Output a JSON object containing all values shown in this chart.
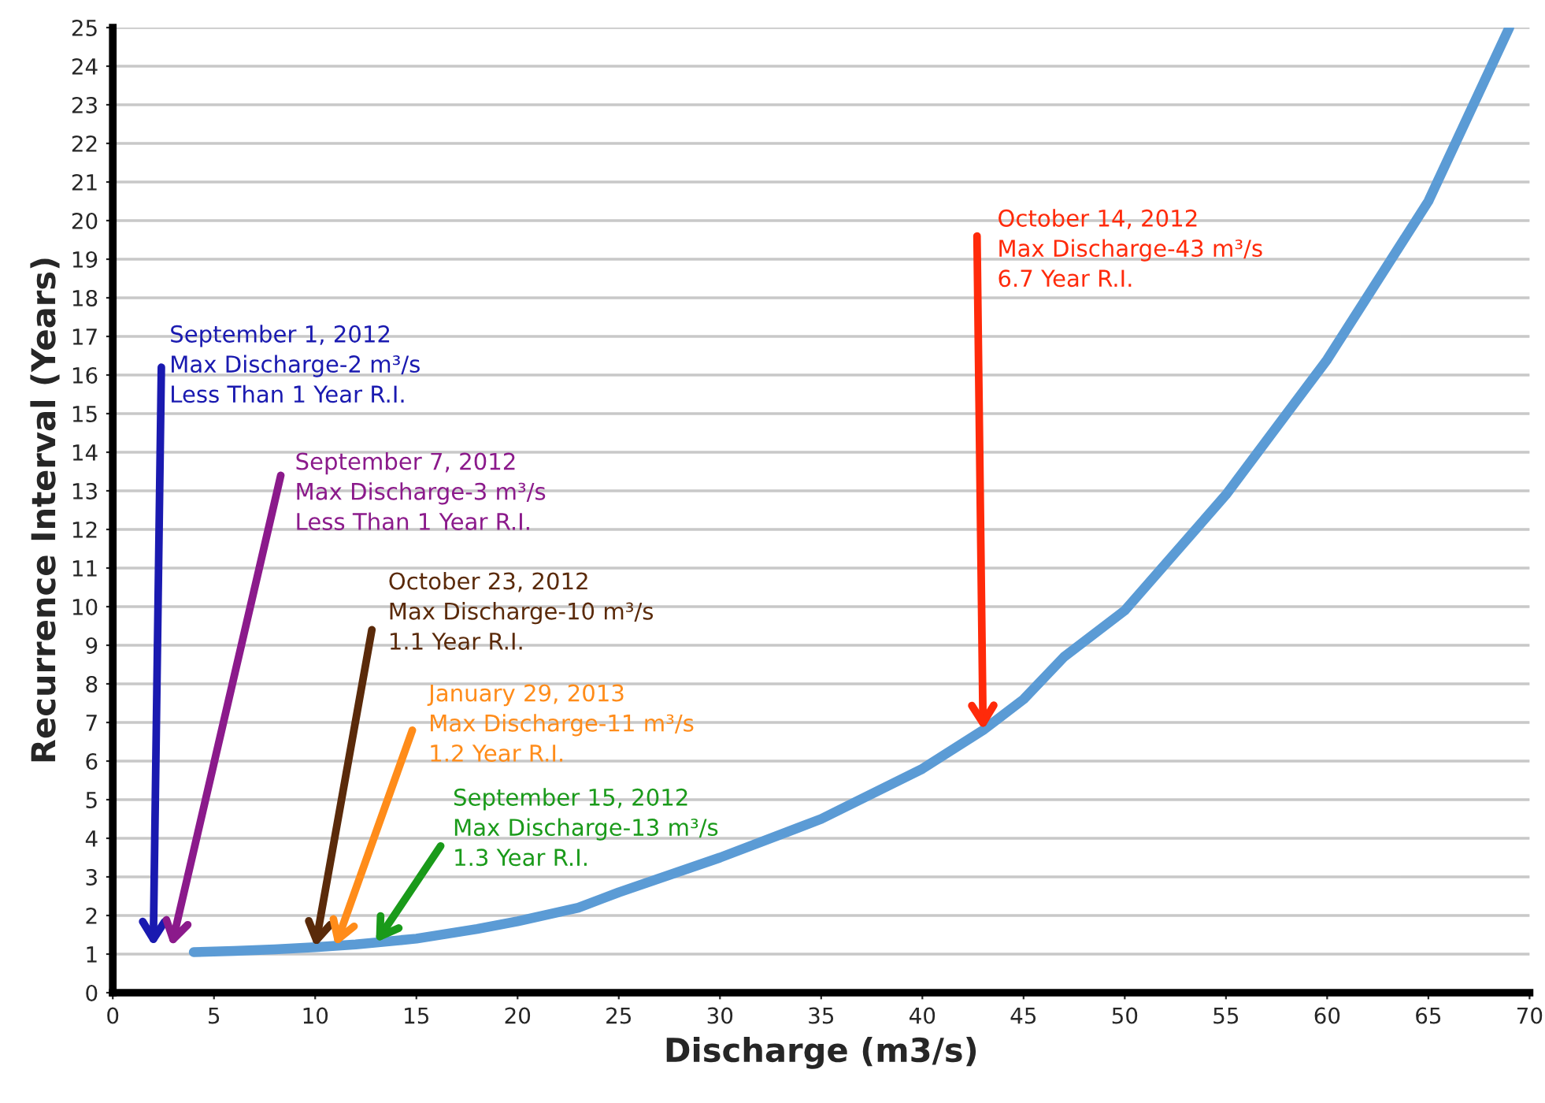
{
  "chart_data": {
    "type": "line",
    "xlabel": "Discharge (m3/s)",
    "ylabel": "Recurrence Interval (Years)",
    "series": [
      {
        "color": "#5b9bd5",
        "x": [
          4,
          6,
          8,
          10,
          12,
          15,
          18,
          20,
          23,
          25,
          30,
          35,
          40,
          43,
          45,
          47,
          50,
          55,
          60,
          65,
          69
        ],
        "values": [
          1.05,
          1.08,
          1.12,
          1.18,
          1.25,
          1.4,
          1.65,
          1.85,
          2.2,
          2.6,
          3.5,
          4.5,
          5.8,
          6.8,
          7.6,
          8.7,
          9.9,
          12.9,
          16.4,
          20.5,
          25
        ]
      }
    ],
    "xlim": [
      0,
      70
    ],
    "xticks": [
      0,
      5,
      10,
      15,
      20,
      25,
      30,
      35,
      40,
      45,
      50,
      55,
      60,
      65,
      70
    ],
    "ylim": [
      0,
      25
    ],
    "yticks": [
      0,
      1,
      2,
      3,
      4,
      5,
      6,
      7,
      8,
      9,
      10,
      11,
      12,
      13,
      14,
      15,
      16,
      17,
      18,
      19,
      20,
      21,
      22,
      23,
      24,
      25
    ],
    "grid": "y",
    "marker": "none",
    "line_style": "solid",
    "legend": false,
    "annotations": [
      "September 1, 2012\nMax Discharge-2 m³/s\nLess Than 1 Year R.I.",
      "September 7, 2012\nMax Discharge-3 m³/s\nLess Than 1 Year R.I.",
      {
        "text": "October 23, 2012\nMax Discharge-10 m³/s\n1.1 Year R.I.",
        "x": 10,
        "y": 1.18
      },
      {
        "text": "January 29, 2013\nMax Discharge-11 m³/s\n1.2 Year R.I.",
        "x": 11,
        "y": 1.21
      },
      {
        "text": "September 15, 2012\nMax Discharge-13 m³/s\n1.3 Year R.I.",
        "x": 13,
        "y": 1.3
      },
      {
        "text": "October 14, 2012\nMax Discharge-43 m³/s\n6.7 Year R.I.",
        "x": 43,
        "y": 6.8
      }
    ]
  }
}
